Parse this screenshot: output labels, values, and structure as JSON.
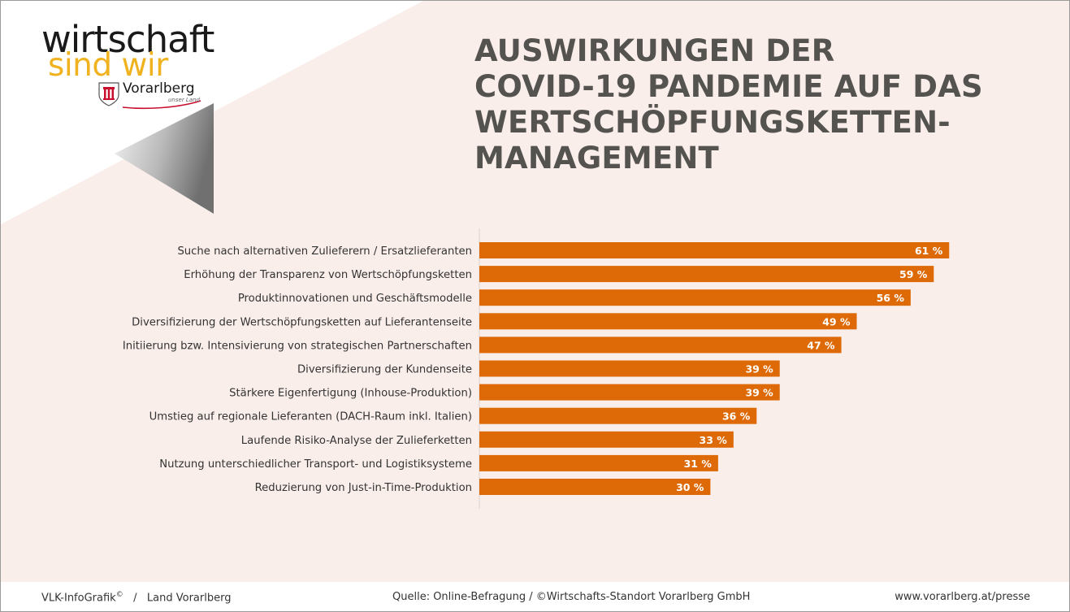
{
  "brand": {
    "line1": "wirtschaft",
    "line2": "sind wir",
    "state_name": "Vorarlberg",
    "state_tag": "unser Land",
    "crest_icon": "vorarlberg-crest-icon",
    "color_dark": "#1a1a1a",
    "color_gold": "#f0b21e"
  },
  "title_lines": [
    "AUSWIRKUNGEN DER",
    "COVID-19 PANDEMIE AUF DAS",
    "WERTSCHÖPFUNGSKETTEN-",
    "MANAGEMENT"
  ],
  "chart_data": {
    "type": "bar",
    "orientation": "horizontal",
    "bar_color": "#dd6a06",
    "value_suffix": " %",
    "xlim": [
      0,
      100
    ],
    "grid": false,
    "categories": [
      "Suche nach alternativen Zulieferern / Ersatzlieferanten",
      "Erhöhung der Transparenz von Wertschöpfungsketten",
      "Produktinnovationen und Geschäftsmodelle",
      "Diversifizierung der Wertschöpfungsketten auf Lieferantenseite",
      "Initiierung bzw. Intensivierung von strategischen Partnerschaften",
      "Diversifizierung der Kundenseite",
      "Stärkere Eigenfertigung (Inhouse-Produktion)",
      "Umstieg auf regionale Lieferanten (DACH-Raum inkl. Italien)",
      "Laufende Risiko-Analyse der Zulieferketten",
      "Nutzung unterschiedlicher Transport- und Logistiksysteme",
      "Reduzierung von Just-in-Time-Produktion"
    ],
    "values": [
      61,
      59,
      56,
      49,
      47,
      39,
      39,
      36,
      33,
      31,
      30
    ]
  },
  "footer": {
    "left": "VLK-InfoGrafik© / Land Vorarlberg",
    "left_main": "VLK-InfoGrafik",
    "left_reg": "©",
    "left_sep": "/",
    "left_org": "Land Vorarlberg",
    "center": "Quelle: Online-Befragung / ©Wirtschafts-Standort Vorarlberg GmbH",
    "right": "www.vorarlberg.at/presse"
  }
}
